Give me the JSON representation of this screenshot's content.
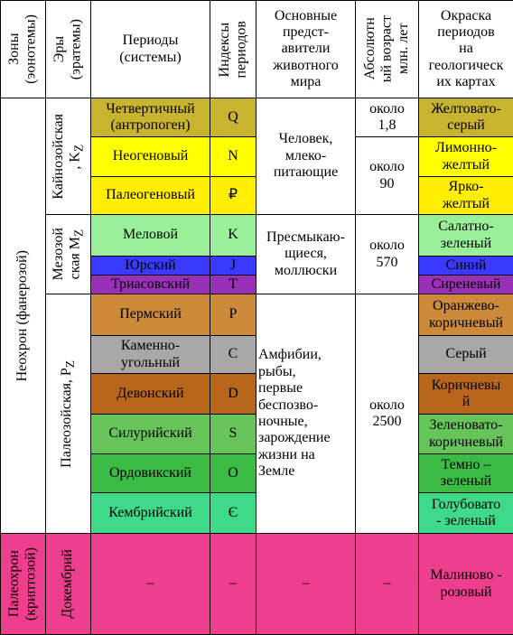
{
  "header": {
    "zones": "Зоны\n(эонотемы)",
    "eras": "Эры\n(эратемы)",
    "periods": "Периоды\n(системы)",
    "indices": "Индексы\nпериодов",
    "animals": "Основные\nпредст-\nавители\nживотного\nмира",
    "age": "Абсолютн\nый возраст\nмлн. лет",
    "map_color": "Окраска\nпериодов\nна\nгеологическ\nих картах"
  },
  "zones": {
    "neochron": "Неохрон (фанерозой)",
    "paleochron": "Палеохрон\n(криптозой)"
  },
  "eras": [
    {
      "name": "Кайнозойская\n, K",
      "sub": "Z"
    },
    {
      "name": "Мезозой\nская M",
      "sub": "Z"
    },
    {
      "name": "Палеозойская, P",
      "sub": "Z"
    },
    {
      "name": "Докембрий"
    }
  ],
  "periods": [
    {
      "name": "Четвертичный\n(антропоген)",
      "index": "Q",
      "map_color": "Желтовато-\nсерый"
    },
    {
      "name": "Неогеновый",
      "index": "N",
      "map_color": "Лимонно-\nжелтый"
    },
    {
      "name": "Палеогеновый",
      "index": "₽",
      "map_color": "Ярко-\nжелтый"
    },
    {
      "name": "Меловой",
      "index": "K",
      "map_color": "Салатно-\nзеленый"
    },
    {
      "name": "Юрский",
      "index": "J",
      "map_color": "Синий"
    },
    {
      "name": "Триасовский",
      "index": "T",
      "map_color": "Сиреневый"
    },
    {
      "name": "Пермский",
      "index": "P",
      "map_color": "Оранжево-\nкоричневый"
    },
    {
      "name": "Каменно-\nугольный",
      "index": "C",
      "map_color": "Серый"
    },
    {
      "name": "Девонский",
      "index": "D",
      "map_color": "Коричневы\nй"
    },
    {
      "name": "Силурийский",
      "index": "S",
      "map_color": "Зеленовато-\nкоричневый"
    },
    {
      "name": "Ордовикский",
      "index": "O",
      "map_color": "Темно –\nзеленый"
    },
    {
      "name": "Кембрийский",
      "index": "Є",
      "map_color": "Голубовато\n- зеленый"
    }
  ],
  "animals": [
    "Человек,\nмлеко-\nпитающие",
    "Пресмыкаю-\nщиеся,\nмоллюски",
    "Амфибии,\nрыбы,\nпервые\nбеспозво-\nночные,\nзарождение\nжизни на\nЗемле"
  ],
  "ages": [
    "около\n1,8",
    "около\n90",
    "около\n570",
    "около\n2500"
  ],
  "precambrian": {
    "period": "–",
    "index": "–",
    "animals": "–",
    "age": "–",
    "map_color": "Малиново -\nрозовый"
  }
}
